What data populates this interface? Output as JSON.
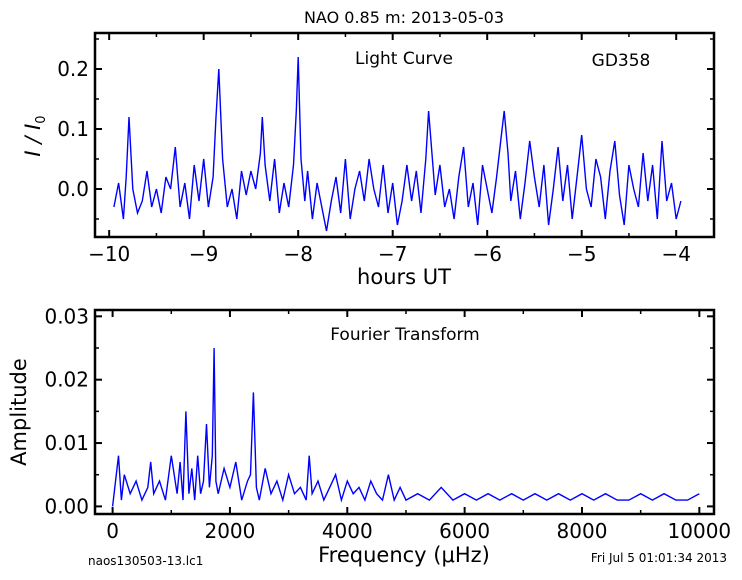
{
  "title": "NAO 0.85 m:  2013-05-03",
  "footer": {
    "left": "naos130503-13.lc1",
    "right": "Fri Jul  5 01:01:34 2013"
  },
  "colors": {
    "series": "#0000ff",
    "axes": "#000000"
  },
  "chart_data": [
    {
      "type": "line",
      "annotations": [
        "Light Curve",
        "GD358"
      ],
      "xlabel": "hours UT",
      "ylabel": "I / I0",
      "xlim": [
        -10.15,
        -3.6
      ],
      "ylim": [
        -0.08,
        0.26
      ],
      "xticks": [
        -10,
        -9,
        -8,
        -7,
        -6,
        -5,
        -4
      ],
      "xtick_labels": [
        "−10",
        "−9",
        "−8",
        "−7",
        "−6",
        "−5",
        "−4"
      ],
      "yticks": [
        0.0,
        0.1,
        0.2
      ],
      "ytick_labels": [
        "0.0",
        "0.1",
        "0.2"
      ],
      "grid": false,
      "series": [
        {
          "x": [
            -9.95,
            -9.9,
            -9.85,
            -9.82,
            -9.79,
            -9.75,
            -9.7,
            -9.65,
            -9.6,
            -9.55,
            -9.5,
            -9.45,
            -9.4,
            -9.35,
            -9.3,
            -9.25,
            -9.2,
            -9.15,
            -9.1,
            -9.05,
            -9.0,
            -8.95,
            -8.9,
            -8.87,
            -8.84,
            -8.8,
            -8.75,
            -8.7,
            -8.65,
            -8.6,
            -8.55,
            -8.5,
            -8.45,
            -8.4,
            -8.38,
            -8.35,
            -8.3,
            -8.25,
            -8.2,
            -8.15,
            -8.1,
            -8.05,
            -8.02,
            -8.0,
            -7.97,
            -7.93,
            -7.9,
            -7.85,
            -7.8,
            -7.75,
            -7.7,
            -7.65,
            -7.6,
            -7.55,
            -7.5,
            -7.45,
            -7.4,
            -7.35,
            -7.3,
            -7.25,
            -7.2,
            -7.15,
            -7.1,
            -7.05,
            -7.0,
            -6.95,
            -6.9,
            -6.85,
            -6.8,
            -6.75,
            -6.7,
            -6.65,
            -6.62,
            -6.58,
            -6.55,
            -6.5,
            -6.45,
            -6.4,
            -6.35,
            -6.3,
            -6.25,
            -6.2,
            -6.15,
            -6.1,
            -6.05,
            -6.0,
            -5.95,
            -5.9,
            -5.85,
            -5.82,
            -5.78,
            -5.75,
            -5.7,
            -5.65,
            -5.6,
            -5.55,
            -5.5,
            -5.45,
            -5.4,
            -5.35,
            -5.3,
            -5.25,
            -5.2,
            -5.15,
            -5.1,
            -5.05,
            -5.0,
            -4.95,
            -4.9,
            -4.85,
            -4.8,
            -4.75,
            -4.7,
            -4.65,
            -4.6,
            -4.55,
            -4.5,
            -4.45,
            -4.4,
            -4.35,
            -4.3,
            -4.25,
            -4.2,
            -4.15,
            -4.1,
            -4.05,
            -4.0,
            -3.95
          ],
          "y": [
            -0.03,
            0.01,
            -0.05,
            0.02,
            0.12,
            0.0,
            -0.04,
            -0.02,
            0.03,
            -0.03,
            0.0,
            -0.04,
            0.02,
            0.0,
            0.07,
            -0.03,
            0.01,
            -0.05,
            0.04,
            -0.02,
            0.05,
            -0.03,
            0.02,
            0.12,
            0.2,
            0.05,
            -0.03,
            0.0,
            -0.05,
            0.03,
            -0.01,
            0.03,
            0.0,
            0.06,
            0.12,
            0.04,
            -0.02,
            0.05,
            -0.04,
            0.01,
            -0.03,
            0.04,
            0.13,
            0.22,
            0.05,
            -0.02,
            0.03,
            -0.05,
            0.01,
            -0.03,
            -0.07,
            -0.02,
            0.02,
            -0.04,
            0.05,
            -0.05,
            0.0,
            0.03,
            -0.02,
            0.05,
            0.0,
            -0.03,
            0.04,
            -0.04,
            0.01,
            -0.06,
            -0.02,
            0.04,
            -0.02,
            0.03,
            -0.04,
            0.05,
            0.13,
            0.05,
            -0.01,
            0.04,
            -0.03,
            0.0,
            -0.05,
            0.02,
            0.07,
            -0.03,
            0.01,
            -0.06,
            0.04,
            0.0,
            -0.04,
            0.02,
            0.09,
            0.13,
            0.06,
            -0.02,
            0.03,
            -0.05,
            0.01,
            0.08,
            0.02,
            -0.03,
            0.04,
            -0.06,
            0.0,
            0.07,
            -0.02,
            0.04,
            -0.05,
            0.02,
            0.09,
            0.0,
            -0.03,
            0.05,
            0.02,
            -0.05,
            0.03,
            0.08,
            -0.01,
            -0.06,
            0.04,
            0.0,
            -0.03,
            0.06,
            -0.02,
            0.04,
            -0.05,
            0.08,
            -0.02,
            0.01,
            -0.05,
            -0.02
          ]
        }
      ]
    },
    {
      "type": "line",
      "annotations": [
        "Fourier Transform"
      ],
      "xlabel": "Frequency (μHz)",
      "ylabel": "Amplitude",
      "xlim": [
        -300,
        10250
      ],
      "ylim": [
        -0.0012,
        0.031
      ],
      "xticks": [
        0,
        2000,
        4000,
        6000,
        8000,
        10000
      ],
      "xtick_labels": [
        "0",
        "2000",
        "4000",
        "6000",
        "8000",
        "10000"
      ],
      "yticks": [
        0.0,
        0.01,
        0.02,
        0.03
      ],
      "ytick_labels": [
        "0.00",
        "0.01",
        "0.02",
        "0.03"
      ],
      "grid": false,
      "series": [
        {
          "x": [
            0,
            100,
            150,
            200,
            300,
            400,
            500,
            600,
            650,
            700,
            800,
            900,
            1000,
            1100,
            1150,
            1200,
            1250,
            1300,
            1350,
            1400,
            1450,
            1500,
            1550,
            1600,
            1650,
            1700,
            1730,
            1760,
            1800,
            1900,
            2000,
            2100,
            2200,
            2300,
            2350,
            2400,
            2450,
            2500,
            2600,
            2700,
            2800,
            2900,
            3000,
            3100,
            3200,
            3300,
            3350,
            3400,
            3500,
            3600,
            3700,
            3800,
            3900,
            4000,
            4100,
            4200,
            4300,
            4400,
            4500,
            4600,
            4700,
            4800,
            4900,
            5000,
            5200,
            5400,
            5600,
            5800,
            6000,
            6200,
            6400,
            6600,
            6800,
            7000,
            7200,
            7400,
            7600,
            7800,
            8000,
            8200,
            8400,
            8600,
            8800,
            9000,
            9200,
            9400,
            9600,
            9800,
            10000
          ],
          "y": [
            0.0,
            0.008,
            0.001,
            0.005,
            0.002,
            0.004,
            0.001,
            0.003,
            0.007,
            0.002,
            0.004,
            0.001,
            0.008,
            0.002,
            0.007,
            0.001,
            0.015,
            0.002,
            0.006,
            0.001,
            0.008,
            0.002,
            0.004,
            0.013,
            0.003,
            0.008,
            0.025,
            0.004,
            0.002,
            0.006,
            0.003,
            0.007,
            0.001,
            0.004,
            0.005,
            0.018,
            0.003,
            0.001,
            0.006,
            0.002,
            0.004,
            0.001,
            0.005,
            0.002,
            0.003,
            0.001,
            0.008,
            0.002,
            0.004,
            0.001,
            0.003,
            0.005,
            0.001,
            0.004,
            0.002,
            0.003,
            0.001,
            0.004,
            0.002,
            0.001,
            0.005,
            0.001,
            0.003,
            0.001,
            0.002,
            0.001,
            0.003,
            0.001,
            0.002,
            0.001,
            0.002,
            0.001,
            0.002,
            0.001,
            0.002,
            0.001,
            0.002,
            0.001,
            0.002,
            0.001,
            0.002,
            0.001,
            0.001,
            0.002,
            0.001,
            0.002,
            0.001,
            0.001,
            0.002
          ]
        }
      ]
    }
  ]
}
